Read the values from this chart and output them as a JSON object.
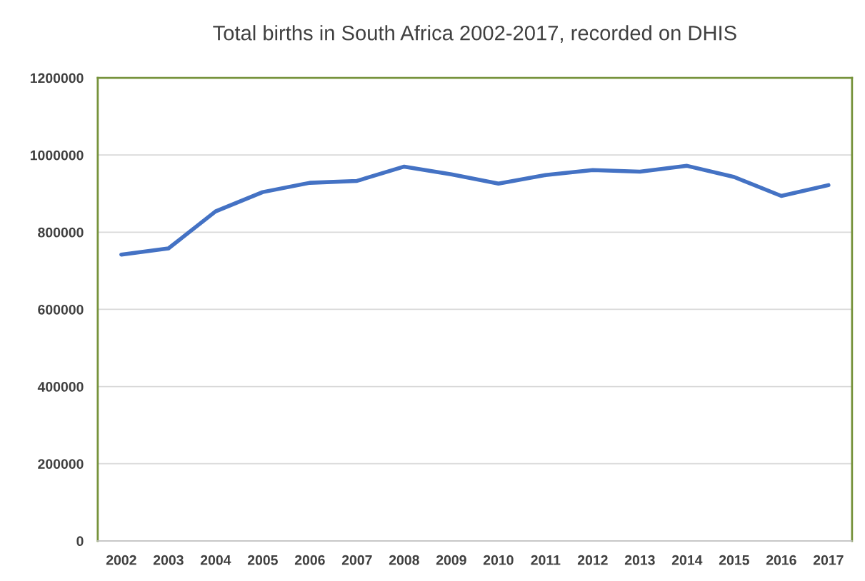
{
  "chart_data": {
    "type": "line",
    "title": "Total births in South Africa 2002-2017, recorded on DHIS",
    "categories": [
      "2002",
      "2003",
      "2004",
      "2005",
      "2006",
      "2007",
      "2008",
      "2009",
      "2010",
      "2011",
      "2012",
      "2013",
      "2014",
      "2015",
      "2016",
      "2017"
    ],
    "series": [
      {
        "color": "#4472c4",
        "values": [
          742000,
          758000,
          854000,
          904000,
          928000,
          933000,
          970000,
          950000,
          926000,
          948000,
          961000,
          957000,
          972000,
          943000,
          894000,
          922000
        ]
      }
    ],
    "ylim": [
      0,
      1200000
    ],
    "yticks": [
      0,
      200000,
      400000,
      600000,
      800000,
      1000000,
      1200000
    ],
    "grid": "y",
    "marker": "none",
    "line_style": "solid",
    "legend": false
  }
}
